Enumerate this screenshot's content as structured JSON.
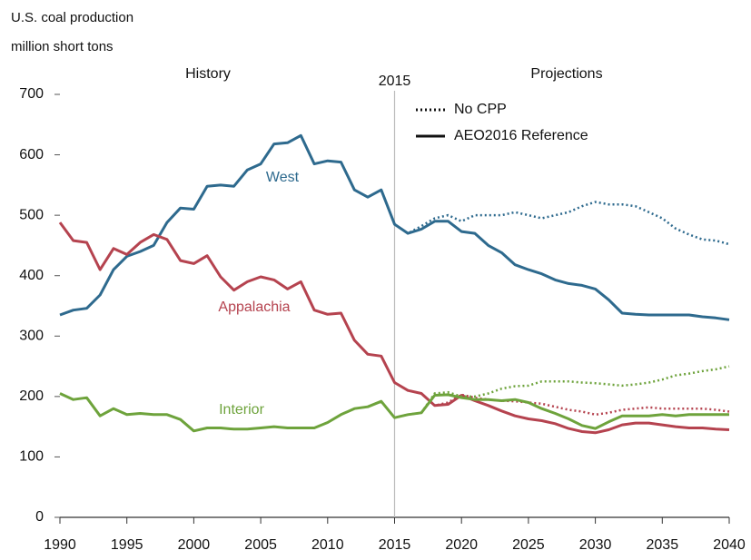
{
  "chart_data": {
    "type": "line",
    "title": "U.S. coal production",
    "subtitle": "million short tons",
    "annotations": [
      "History",
      "Projections",
      "2015"
    ],
    "divider_x": 2015,
    "legend": [
      {
        "label": "No CPP",
        "dash": "dotted"
      },
      {
        "label": "AEO2016 Reference",
        "dash": "solid"
      }
    ],
    "x": [
      1990,
      1991,
      1992,
      1993,
      1994,
      1995,
      1996,
      1997,
      1998,
      1999,
      2000,
      2001,
      2002,
      2003,
      2004,
      2005,
      2006,
      2007,
      2008,
      2009,
      2010,
      2011,
      2012,
      2013,
      2014,
      2015,
      2016,
      2017,
      2018,
      2019,
      2020,
      2021,
      2022,
      2023,
      2024,
      2025,
      2026,
      2027,
      2028,
      2029,
      2030,
      2031,
      2032,
      2033,
      2034,
      2035,
      2036,
      2037,
      2038,
      2039,
      2040
    ],
    "series": [
      {
        "name": "West",
        "color": "#2e6a8e",
        "values": [
          335,
          343,
          346,
          368,
          410,
          432,
          440,
          450,
          488,
          512,
          510,
          548,
          550,
          548,
          575,
          585,
          618,
          620,
          632,
          585,
          590,
          588,
          542,
          530,
          542,
          485,
          470,
          477,
          490,
          490,
          473,
          470,
          450,
          438,
          418,
          410,
          403,
          393,
          387,
          384,
          378,
          360,
          338,
          336,
          335,
          335,
          335,
          335,
          332,
          330,
          327
        ],
        "alt_values": [
          null,
          null,
          null,
          null,
          null,
          null,
          null,
          null,
          null,
          null,
          null,
          null,
          null,
          null,
          null,
          null,
          null,
          null,
          null,
          null,
          null,
          null,
          null,
          null,
          null,
          485,
          470,
          482,
          495,
          500,
          490,
          500,
          500,
          500,
          505,
          500,
          495,
          500,
          505,
          515,
          522,
          518,
          518,
          515,
          505,
          495,
          478,
          468,
          460,
          458,
          452
        ]
      },
      {
        "name": "Appalachia",
        "color": "#b5434f",
        "values": [
          488,
          458,
          455,
          410,
          445,
          435,
          455,
          468,
          460,
          425,
          420,
          433,
          398,
          376,
          390,
          398,
          393,
          378,
          390,
          343,
          336,
          338,
          293,
          270,
          267,
          223,
          210,
          205,
          185,
          187,
          202,
          193,
          185,
          176,
          168,
          163,
          160,
          155,
          147,
          142,
          140,
          145,
          153,
          156,
          156,
          153,
          150,
          148,
          148,
          146,
          145
        ],
        "alt_values": [
          null,
          null,
          null,
          null,
          null,
          null,
          null,
          null,
          null,
          null,
          null,
          null,
          null,
          null,
          null,
          null,
          null,
          null,
          null,
          null,
          null,
          null,
          null,
          null,
          null,
          223,
          210,
          205,
          185,
          190,
          203,
          198,
          195,
          193,
          192,
          190,
          188,
          183,
          178,
          175,
          170,
          173,
          178,
          180,
          182,
          180,
          180,
          180,
          180,
          178,
          175
        ]
      },
      {
        "name": "Interior",
        "color": "#6ea33c",
        "values": [
          205,
          195,
          198,
          168,
          180,
          170,
          172,
          170,
          170,
          162,
          143,
          148,
          148,
          146,
          146,
          148,
          150,
          148,
          148,
          148,
          157,
          170,
          180,
          183,
          192,
          165,
          170,
          173,
          202,
          203,
          198,
          195,
          195,
          193,
          195,
          190,
          180,
          172,
          163,
          152,
          147,
          158,
          168,
          168,
          168,
          170,
          168,
          170,
          170,
          170,
          170
        ],
        "alt_values": [
          null,
          null,
          null,
          null,
          null,
          null,
          null,
          null,
          null,
          null,
          null,
          null,
          null,
          null,
          null,
          null,
          null,
          null,
          null,
          null,
          null,
          null,
          null,
          null,
          null,
          165,
          170,
          173,
          205,
          207,
          200,
          200,
          205,
          213,
          217,
          218,
          225,
          225,
          225,
          223,
          222,
          220,
          218,
          220,
          223,
          228,
          235,
          238,
          242,
          245,
          250
        ]
      }
    ],
    "xlim": [
      1990,
      2040
    ],
    "xticks": [
      1990,
      1995,
      2000,
      2005,
      2010,
      2015,
      2020,
      2025,
      2030,
      2035,
      2040
    ],
    "ylim": [
      0,
      700
    ],
    "yticks": [
      0,
      100,
      200,
      300,
      400,
      500,
      600,
      700
    ],
    "grid": false
  }
}
